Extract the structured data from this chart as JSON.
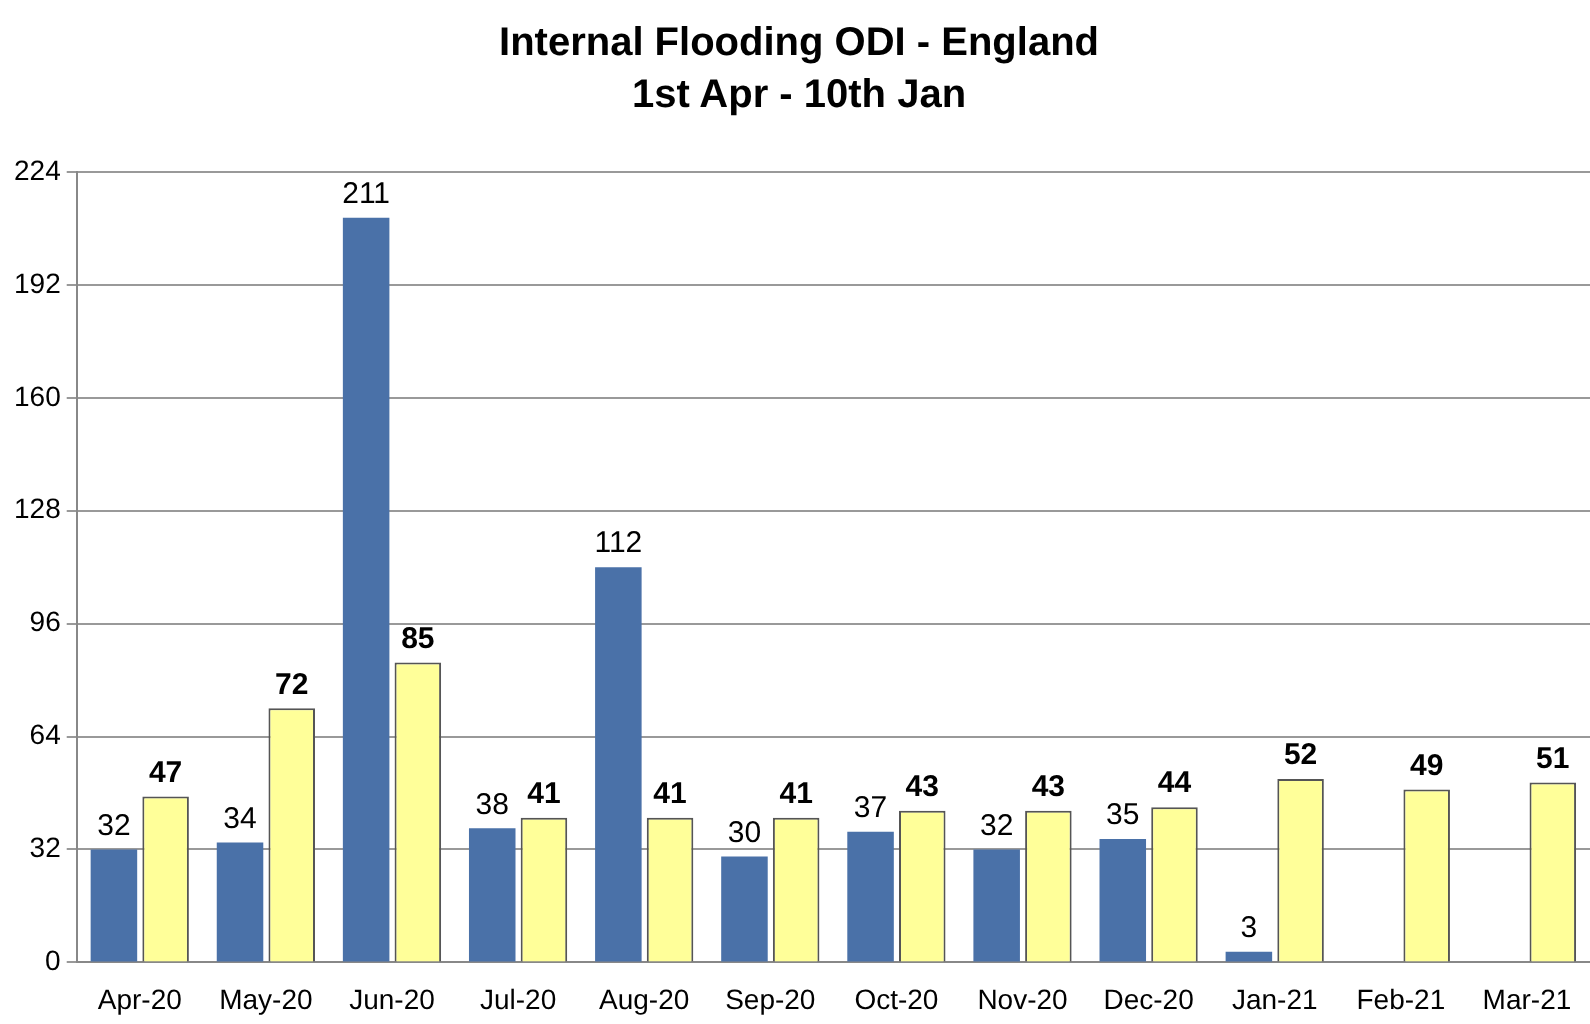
{
  "chart_data": {
    "type": "bar",
    "title": "Internal Flooding ODI - England",
    "subtitle": "1st Apr - 10th Jan",
    "categories": [
      "Apr-20",
      "May-20",
      "Jun-20",
      "Jul-20",
      "Aug-20",
      "Sep-20",
      "Oct-20",
      "Nov-20",
      "Dec-20",
      "Jan-21",
      "Feb-21",
      "Mar-21"
    ],
    "series": [
      {
        "color": "#4a71a8",
        "values": [
          32,
          34,
          211,
          38,
          112,
          30,
          37,
          32,
          35,
          3,
          null,
          null
        ]
      },
      {
        "color": "#ffff99",
        "values": [
          47,
          72,
          85,
          41,
          41,
          41,
          43,
          43,
          44,
          52,
          49,
          51
        ]
      }
    ],
    "ylim": [
      0,
      224
    ],
    "yticks": [
      0,
      32,
      64,
      96,
      128,
      160,
      192,
      224
    ],
    "grid": "y",
    "data_labels": true,
    "legend": false
  }
}
